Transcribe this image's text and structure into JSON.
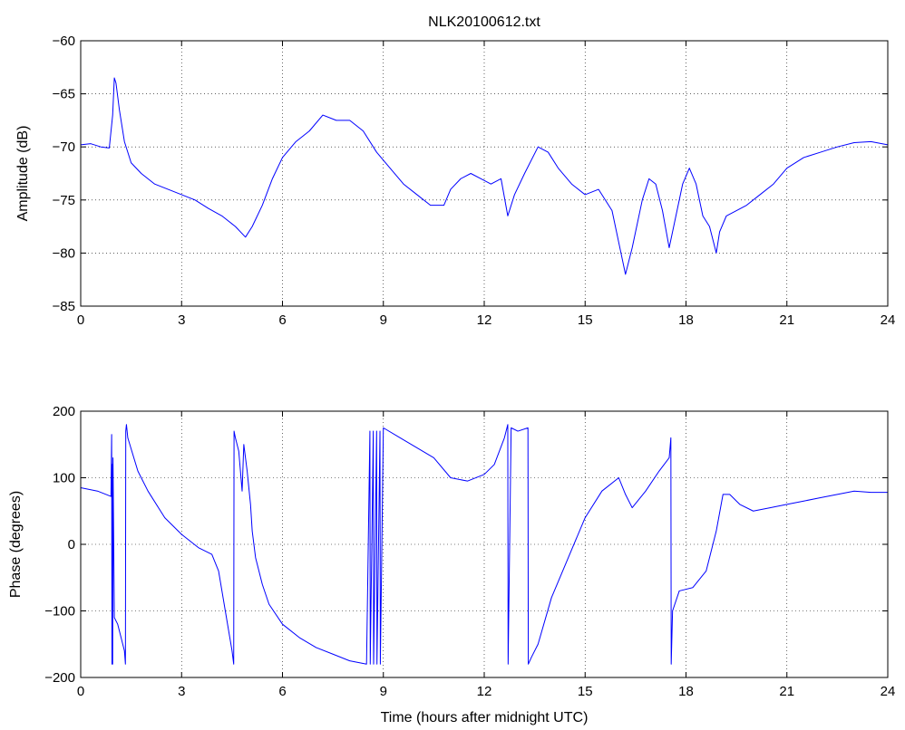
{
  "chart_data": [
    {
      "type": "line",
      "title": "NLK20100612.txt",
      "xlabel": "",
      "ylabel": "Amplitude (dB)",
      "xlim": [
        0,
        24
      ],
      "ylim": [
        -85,
        -60
      ],
      "xticks": [
        0,
        3,
        6,
        9,
        12,
        15,
        18,
        21,
        24
      ],
      "yticks": [
        -85,
        -80,
        -75,
        -70,
        -65,
        -60
      ],
      "grid": true,
      "color": "#0000ff",
      "series": [
        {
          "x": [
            0,
            0.3,
            0.6,
            0.85,
            0.95,
            1.0,
            1.05,
            1.15,
            1.3,
            1.5,
            1.8,
            2.2,
            2.6,
            3.0,
            3.4,
            3.8,
            4.2,
            4.6,
            4.9,
            5.1,
            5.4,
            5.7,
            6.0,
            6.4,
            6.8,
            7.2,
            7.6,
            8.0,
            8.4,
            8.8,
            9.2,
            9.6,
            10.0,
            10.4,
            10.8,
            11.0,
            11.3,
            11.6,
            11.9,
            12.2,
            12.5,
            12.7,
            12.9,
            13.2,
            13.6,
            13.9,
            14.2,
            14.6,
            15.0,
            15.4,
            15.8,
            16.0,
            16.2,
            16.4,
            16.7,
            16.9,
            17.1,
            17.3,
            17.5,
            17.7,
            17.9,
            18.1,
            18.3,
            18.5,
            18.7,
            18.9,
            19.0,
            19.2,
            19.5,
            19.8,
            20.2,
            20.6,
            21.0,
            21.5,
            22.0,
            22.5,
            23.0,
            23.5,
            24.0
          ],
          "y": [
            -69.8,
            -69.7,
            -70.0,
            -70.1,
            -67.0,
            -63.5,
            -64.0,
            -66.5,
            -69.5,
            -71.5,
            -72.5,
            -73.5,
            -74.0,
            -74.5,
            -75.0,
            -75.8,
            -76.5,
            -77.5,
            -78.5,
            -77.5,
            -75.5,
            -73.0,
            -71.0,
            -69.5,
            -68.5,
            -67.0,
            -67.5,
            -67.5,
            -68.5,
            -70.5,
            -72.0,
            -73.5,
            -74.5,
            -75.5,
            -75.5,
            -74.0,
            -73.0,
            -72.5,
            -73.0,
            -73.5,
            -73.0,
            -76.5,
            -74.5,
            -72.5,
            -70.0,
            -70.5,
            -72.0,
            -73.5,
            -74.5,
            -74.0,
            -76.0,
            -79.0,
            -82.0,
            -79.5,
            -75.0,
            -73.0,
            -73.5,
            -76.0,
            -79.5,
            -76.5,
            -73.5,
            -72.0,
            -73.5,
            -76.5,
            -77.5,
            -80.0,
            -78.0,
            -76.5,
            -76.0,
            -75.5,
            -74.5,
            -73.5,
            -72.0,
            -71.0,
            -70.5,
            -70.0,
            -69.6,
            -69.5,
            -69.8
          ]
        }
      ]
    },
    {
      "type": "line",
      "title": "",
      "xlabel": "Time (hours after midnight UTC)",
      "ylabel": "Phase (degrees)",
      "xlim": [
        0,
        24
      ],
      "ylim": [
        -200,
        200
      ],
      "xticks": [
        0,
        3,
        6,
        9,
        12,
        15,
        18,
        21,
        24
      ],
      "yticks": [
        -200,
        -100,
        0,
        100,
        200
      ],
      "grid": true,
      "color": "#0000ff",
      "series": [
        {
          "x": [
            0,
            0.5,
            0.9,
            0.92,
            0.93,
            0.94,
            0.95,
            0.96,
            1.0,
            1.1,
            1.2,
            1.3,
            1.33,
            1.34,
            1.36,
            1.4,
            1.7,
            2.0,
            2.5,
            3.0,
            3.5,
            3.9,
            4.1,
            4.3,
            4.5,
            4.55,
            4.56,
            4.6,
            4.7,
            4.8,
            4.85,
            4.95,
            5.05,
            5.1,
            5.2,
            5.4,
            5.6,
            6.0,
            6.5,
            7.0,
            7.5,
            8.0,
            8.5,
            8.6,
            8.61,
            8.7,
            8.71,
            8.8,
            8.81,
            8.9,
            8.91,
            9.0,
            9.5,
            10.0,
            10.5,
            11.0,
            11.5,
            12.0,
            12.3,
            12.6,
            12.7,
            12.71,
            12.8,
            13.0,
            13.3,
            13.31,
            13.4,
            13.6,
            14.0,
            14.5,
            15.0,
            15.5,
            16.0,
            16.2,
            16.4,
            16.8,
            17.2,
            17.5,
            17.55,
            17.56,
            17.6,
            17.8,
            18.2,
            18.6,
            18.9,
            19.1,
            19.3,
            19.6,
            20.0,
            20.5,
            21.0,
            21.5,
            22.0,
            22.5,
            23.0,
            23.5,
            24.0
          ],
          "y": [
            85,
            80,
            72,
            165,
            -180,
            120,
            -180,
            130,
            -110,
            -120,
            -140,
            -160,
            -180,
            170,
            180,
            160,
            110,
            80,
            40,
            15,
            -5,
            -15,
            -40,
            -100,
            -160,
            -180,
            170,
            160,
            140,
            80,
            150,
            110,
            60,
            20,
            -20,
            -60,
            -90,
            -120,
            -140,
            -155,
            -165,
            -175,
            -180,
            170,
            -180,
            170,
            -180,
            170,
            -180,
            170,
            -180,
            175,
            160,
            145,
            130,
            100,
            95,
            105,
            120,
            160,
            180,
            -180,
            175,
            170,
            175,
            -180,
            -170,
            -150,
            -80,
            -20,
            40,
            80,
            100,
            75,
            55,
            80,
            110,
            130,
            160,
            -180,
            -100,
            -70,
            -65,
            -40,
            20,
            75,
            75,
            60,
            50,
            55,
            60,
            65,
            70,
            75,
            80,
            78,
            78
          ]
        }
      ]
    }
  ]
}
